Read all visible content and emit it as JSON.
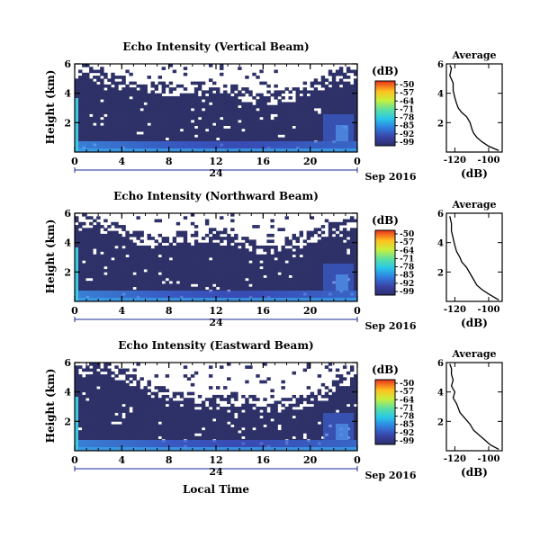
{
  "figure": {
    "xlabel": "Local Time",
    "date_label": "Sep 2016",
    "day_label": "24"
  },
  "chart_data": [
    {
      "type": "heatmap",
      "title": "Echo Intensity (Vertical Beam)",
      "ylabel": "Height (km)",
      "xlabel": "Local Time",
      "xlim": [
        0,
        24
      ],
      "ylim": [
        0,
        6
      ],
      "x_ticks": [
        "0",
        "4",
        "8",
        "12",
        "16",
        "20",
        "0"
      ],
      "y_ticks": [
        "2",
        "4",
        "6"
      ],
      "colorbar": {
        "label": "(dB)",
        "ticks": [
          "-50",
          "-57",
          "-64",
          "-71",
          "-78",
          "-85",
          "-92",
          "-99"
        ],
        "range": [
          -99,
          -50
        ]
      },
      "average": {
        "title": "Average",
        "xlabel": "(dB)",
        "xlim": [
          -125,
          -92
        ],
        "ylim": [
          0,
          6
        ],
        "x_ticks": [
          "-120",
          "-100"
        ],
        "y_ticks": [
          "2",
          "4",
          "6"
        ],
        "profile": [
          [
            -94,
            0.1
          ],
          [
            -100,
            0.4
          ],
          [
            -104,
            0.7
          ],
          [
            -107,
            1.0
          ],
          [
            -109,
            1.3
          ],
          [
            -110,
            1.6
          ],
          [
            -111,
            2.0
          ],
          [
            -113,
            2.4
          ],
          [
            -116,
            2.7
          ],
          [
            -118,
            3.0
          ],
          [
            -119,
            3.3
          ],
          [
            -120,
            3.7
          ],
          [
            -121,
            4.2
          ],
          [
            -121,
            4.7
          ],
          [
            -123,
            5.2
          ],
          [
            -122,
            5.7
          ],
          [
            -123,
            5.9
          ]
        ]
      }
    },
    {
      "type": "heatmap",
      "title": "Echo Intensity (Northward Beam)",
      "ylabel": "Height (km)",
      "xlabel": "Local Time",
      "xlim": [
        0,
        24
      ],
      "ylim": [
        0,
        6
      ],
      "x_ticks": [
        "0",
        "4",
        "8",
        "12",
        "16",
        "20",
        "0"
      ],
      "y_ticks": [
        "2",
        "4",
        "6"
      ],
      "colorbar": {
        "label": "(dB)",
        "ticks": [
          "-50",
          "-57",
          "-64",
          "-71",
          "-78",
          "-85",
          "-92",
          "-99"
        ],
        "range": [
          -99,
          -50
        ]
      },
      "average": {
        "title": "Average",
        "xlabel": "(dB)",
        "xlim": [
          -125,
          -92
        ],
        "ylim": [
          0,
          6
        ],
        "x_ticks": [
          "-120",
          "-100"
        ],
        "y_ticks": [
          "2",
          "4",
          "6"
        ],
        "profile": [
          [
            -94,
            0.1
          ],
          [
            -100,
            0.5
          ],
          [
            -104,
            0.8
          ],
          [
            -107,
            1.1
          ],
          [
            -109,
            1.5
          ],
          [
            -111,
            1.9
          ],
          [
            -113,
            2.3
          ],
          [
            -116,
            2.7
          ],
          [
            -117,
            3.0
          ],
          [
            -119,
            3.4
          ],
          [
            -120,
            3.8
          ],
          [
            -121,
            4.3
          ],
          [
            -122,
            4.8
          ],
          [
            -122,
            5.3
          ],
          [
            -123,
            5.8
          ]
        ]
      }
    },
    {
      "type": "heatmap",
      "title": "Echo Intensity (Eastward Beam)",
      "ylabel": "Height (km)",
      "xlabel": "Local Time",
      "xlim": [
        0,
        24
      ],
      "ylim": [
        0,
        6
      ],
      "x_ticks": [
        "0",
        "4",
        "8",
        "12",
        "16",
        "20",
        "0"
      ],
      "y_ticks": [
        "2",
        "4",
        "6"
      ],
      "colorbar": {
        "label": "(dB)",
        "ticks": [
          "-50",
          "-57",
          "-64",
          "-71",
          "-78",
          "-85",
          "-92",
          "-99"
        ],
        "range": [
          -99,
          -50
        ]
      },
      "average": {
        "title": "Average",
        "xlabel": "(dB)",
        "xlim": [
          -125,
          -92
        ],
        "ylim": [
          0,
          6
        ],
        "x_ticks": [
          "-120",
          "-100"
        ],
        "y_ticks": [
          "2",
          "4",
          "6"
        ],
        "profile": [
          [
            -94,
            0.1
          ],
          [
            -99,
            0.4
          ],
          [
            -103,
            0.8
          ],
          [
            -106,
            1.1
          ],
          [
            -109,
            1.4
          ],
          [
            -111,
            1.8
          ],
          [
            -114,
            2.2
          ],
          [
            -117,
            2.6
          ],
          [
            -118,
            2.9
          ],
          [
            -119,
            3.2
          ],
          [
            -121,
            3.6
          ],
          [
            -120,
            4.0
          ],
          [
            -122,
            4.4
          ],
          [
            -121,
            4.8
          ],
          [
            -122,
            5.2
          ],
          [
            -122,
            5.6
          ],
          [
            -123,
            5.9
          ]
        ]
      }
    }
  ]
}
